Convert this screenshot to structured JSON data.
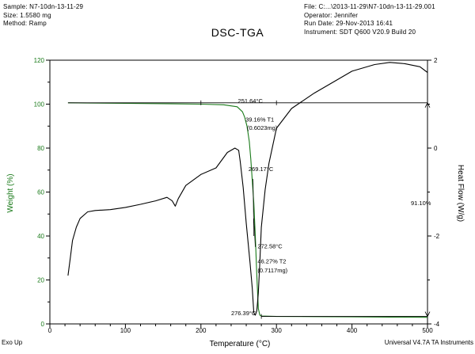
{
  "header": {
    "sample": "Sample: N7-10dn-13-11-29",
    "size": "Size: 1.5580 mg",
    "method": "Method: Ramp",
    "file": "File: C:...\\2013-11-29\\N7-10dn-13-11-29.001",
    "operator": "Operator: Jennifer",
    "run_date": "Run Date: 29-Nov-2013 16:41",
    "instrument": "Instrument: SDT Q600 V20.9 Build 20"
  },
  "footer": {
    "left": "Exo Up",
    "right": "Universal V4.7A TA Instruments"
  },
  "colors": {
    "weight": "#1a7a1a",
    "heatflow": "#000000",
    "axis": "#000000"
  },
  "chart_data": {
    "type": "line",
    "title": "DSC-TGA",
    "xlabel": "Temperature (°C)",
    "ylabel_left": "Weight (%)",
    "ylabel_right": "Heat Flow (W/g)",
    "xlim": [
      0,
      500
    ],
    "ylim_left": [
      0,
      120
    ],
    "ylim_right": [
      -4,
      2
    ],
    "xticks": [
      0,
      100,
      200,
      300,
      400,
      500
    ],
    "yticks_left": [
      0,
      20,
      40,
      60,
      80,
      100,
      120
    ],
    "yticks_right": [
      -4,
      -2,
      0,
      2
    ],
    "grid": false,
    "series": [
      {
        "key": "weight",
        "axis": "left",
        "x": [
          24,
          50,
          100,
          150,
          200,
          230,
          248,
          255,
          258,
          261,
          264,
          266,
          268,
          270,
          272,
          274,
          276,
          278,
          280,
          290,
          300,
          350,
          400,
          450,
          500
        ],
        "y": [
          100.6,
          100.5,
          100.4,
          100.2,
          100,
          99.7,
          98.8,
          96.5,
          94,
          90,
          83,
          75,
          65,
          55,
          40,
          22,
          7,
          4,
          3.6,
          3.5,
          3.4,
          3.3,
          3.2,
          3.1,
          3.0
        ]
      },
      {
        "key": "heatflow",
        "axis": "right",
        "x": [
          24,
          27,
          30,
          35,
          40,
          50,
          60,
          80,
          100,
          120,
          140,
          155,
          162,
          166,
          170,
          180,
          200,
          220,
          235,
          245,
          250,
          252,
          256,
          260,
          265,
          268,
          270,
          272,
          274,
          276,
          278,
          280,
          285,
          290,
          300,
          320,
          350,
          380,
          400,
          430,
          450,
          470,
          490,
          500
        ],
        "y": [
          -2.9,
          -2.5,
          -2.1,
          -1.8,
          -1.6,
          -1.45,
          -1.42,
          -1.4,
          -1.35,
          -1.28,
          -1.2,
          -1.12,
          -1.2,
          -1.32,
          -1.15,
          -0.85,
          -0.6,
          -0.45,
          -0.1,
          0.0,
          -0.05,
          -0.3,
          -0.9,
          -1.7,
          -2.6,
          -3.2,
          -3.75,
          -3.8,
          -3.7,
          -3.3,
          -2.6,
          -1.8,
          -0.95,
          -0.35,
          0.45,
          0.9,
          1.25,
          1.55,
          1.75,
          1.9,
          1.95,
          1.92,
          1.85,
          1.72
        ]
      }
    ],
    "annotations": [
      {
        "text": "251.64°C",
        "x": 249,
        "y": 100.5,
        "axis": "left"
      },
      {
        "text": "39.16% T1",
        "x": 259,
        "y": 92,
        "axis": "left"
      },
      {
        "text": "(0.6023mg)",
        "x": 261,
        "y": 88.2,
        "axis": "left"
      },
      {
        "text": "269.17°C",
        "x": 263,
        "y": 69.5,
        "axis": "left"
      },
      {
        "text": "272.58°C",
        "x": 275,
        "y": 34.5,
        "axis": "left"
      },
      {
        "text": "46.27% T2",
        "x": 275,
        "y": 27.5,
        "axis": "left"
      },
      {
        "text": "(0.7117mg)",
        "x": 275,
        "y": 23.5,
        "axis": "left"
      },
      {
        "text": "276.39°C",
        "x": 240,
        "y": 4,
        "axis": "left"
      },
      {
        "text": "91.10%",
        "x": 478,
        "y": 54,
        "axis": "left"
      }
    ]
  }
}
